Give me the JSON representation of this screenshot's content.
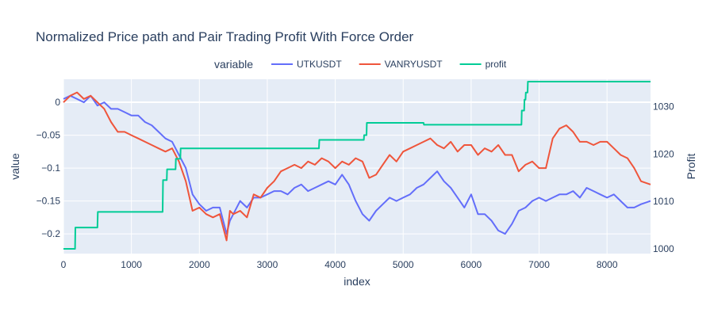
{
  "chart_data": {
    "type": "line",
    "title": "Normalized Price path and Pair Trading Profit With Force Order",
    "xlabel": "index",
    "ylabel": "value",
    "y2label": "Profit",
    "legend_title": "variable",
    "legend_position": "top",
    "xlim": [
      0,
      8640
    ],
    "ylim": [
      -0.23,
      0.035
    ],
    "y2lim": [
      999,
      1035.8
    ],
    "x_ticks": [
      0,
      1000,
      2000,
      3000,
      4000,
      5000,
      6000,
      7000,
      8000
    ],
    "y_ticks": [
      0,
      -0.05,
      -0.1,
      -0.15,
      -0.2
    ],
    "y_tick_labels": [
      "0",
      "−0.05",
      "−0.1",
      "−0.15",
      "−0.2"
    ],
    "y2_ticks": [
      1000,
      1010,
      1020,
      1030
    ],
    "grid": true,
    "background": "#e5ecf6",
    "series": [
      {
        "name": "UTKUSDT",
        "axis": "y",
        "color": "#636efa",
        "x": [
          0,
          100,
          200,
          300,
          400,
          500,
          600,
          700,
          800,
          900,
          1000,
          1100,
          1200,
          1300,
          1400,
          1500,
          1600,
          1700,
          1800,
          1900,
          2000,
          2100,
          2200,
          2300,
          2400,
          2450,
          2500,
          2600,
          2700,
          2800,
          2900,
          3000,
          3100,
          3200,
          3300,
          3400,
          3500,
          3600,
          3700,
          3800,
          3900,
          4000,
          4100,
          4200,
          4300,
          4400,
          4500,
          4600,
          4700,
          4800,
          4900,
          5000,
          5100,
          5200,
          5300,
          5400,
          5500,
          5600,
          5700,
          5800,
          5900,
          6000,
          6100,
          6200,
          6300,
          6400,
          6500,
          6600,
          6700,
          6800,
          6900,
          7000,
          7100,
          7200,
          7300,
          7400,
          7500,
          7600,
          7700,
          7800,
          7900,
          8000,
          8100,
          8200,
          8300,
          8400,
          8500,
          8640
        ],
        "y": [
          0.005,
          0.01,
          0.005,
          0.0,
          0.01,
          -0.005,
          0.0,
          -0.01,
          -0.01,
          -0.015,
          -0.02,
          -0.02,
          -0.03,
          -0.035,
          -0.045,
          -0.055,
          -0.06,
          -0.08,
          -0.1,
          -0.14,
          -0.155,
          -0.165,
          -0.16,
          -0.16,
          -0.2,
          -0.18,
          -0.17,
          -0.15,
          -0.16,
          -0.145,
          -0.145,
          -0.14,
          -0.135,
          -0.135,
          -0.14,
          -0.13,
          -0.125,
          -0.135,
          -0.13,
          -0.125,
          -0.12,
          -0.125,
          -0.11,
          -0.125,
          -0.15,
          -0.17,
          -0.18,
          -0.165,
          -0.155,
          -0.145,
          -0.15,
          -0.145,
          -0.14,
          -0.13,
          -0.125,
          -0.115,
          -0.105,
          -0.12,
          -0.13,
          -0.145,
          -0.16,
          -0.14,
          -0.17,
          -0.17,
          -0.18,
          -0.195,
          -0.2,
          -0.185,
          -0.165,
          -0.16,
          -0.15,
          -0.145,
          -0.15,
          -0.145,
          -0.14,
          -0.14,
          -0.135,
          -0.145,
          -0.13,
          -0.135,
          -0.14,
          -0.145,
          -0.14,
          -0.15,
          -0.16,
          -0.16,
          -0.155,
          -0.15
        ]
      },
      {
        "name": "VANRYUSDT",
        "axis": "y",
        "color": "#ef553b",
        "x": [
          0,
          100,
          200,
          300,
          400,
          500,
          600,
          700,
          800,
          900,
          1000,
          1100,
          1200,
          1300,
          1400,
          1500,
          1600,
          1700,
          1800,
          1900,
          2000,
          2100,
          2200,
          2300,
          2400,
          2450,
          2500,
          2600,
          2700,
          2800,
          2900,
          3000,
          3100,
          3200,
          3300,
          3400,
          3500,
          3600,
          3700,
          3800,
          3900,
          4000,
          4100,
          4200,
          4300,
          4400,
          4500,
          4600,
          4700,
          4800,
          4900,
          5000,
          5100,
          5200,
          5300,
          5400,
          5500,
          5600,
          5700,
          5800,
          5900,
          6000,
          6100,
          6200,
          6300,
          6400,
          6500,
          6600,
          6700,
          6800,
          6900,
          7000,
          7100,
          7200,
          7300,
          7400,
          7500,
          7600,
          7700,
          7800,
          7900,
          8000,
          8100,
          8200,
          8300,
          8400,
          8500,
          8640
        ],
        "y": [
          0.0,
          0.01,
          0.015,
          0.005,
          0.01,
          0.0,
          -0.01,
          -0.03,
          -0.045,
          -0.045,
          -0.05,
          -0.055,
          -0.06,
          -0.065,
          -0.07,
          -0.075,
          -0.07,
          -0.09,
          -0.12,
          -0.165,
          -0.16,
          -0.17,
          -0.175,
          -0.17,
          -0.21,
          -0.165,
          -0.17,
          -0.165,
          -0.175,
          -0.14,
          -0.145,
          -0.13,
          -0.12,
          -0.105,
          -0.1,
          -0.095,
          -0.1,
          -0.09,
          -0.095,
          -0.085,
          -0.09,
          -0.1,
          -0.09,
          -0.095,
          -0.085,
          -0.09,
          -0.115,
          -0.11,
          -0.095,
          -0.08,
          -0.09,
          -0.075,
          -0.07,
          -0.065,
          -0.06,
          -0.055,
          -0.065,
          -0.07,
          -0.06,
          -0.075,
          -0.065,
          -0.065,
          -0.08,
          -0.07,
          -0.075,
          -0.065,
          -0.08,
          -0.08,
          -0.105,
          -0.095,
          -0.09,
          -0.1,
          -0.1,
          -0.055,
          -0.04,
          -0.035,
          -0.045,
          -0.06,
          -0.06,
          -0.065,
          -0.06,
          -0.06,
          -0.07,
          -0.08,
          -0.085,
          -0.1,
          -0.12,
          -0.125
        ]
      },
      {
        "name": "profit",
        "axis": "y2",
        "color": "#00cc96",
        "shape": "step",
        "x": [
          0,
          170,
          175,
          500,
          505,
          1460,
          1465,
          1520,
          1525,
          1650,
          1655,
          1720,
          1725,
          3760,
          3765,
          4420,
          4425,
          4460,
          4465,
          5300,
          5305,
          6740,
          6745,
          6780,
          6785,
          6800,
          6805,
          6830,
          6835,
          8640
        ],
        "y": [
          1000,
          1000,
          1004.5,
          1004.5,
          1007.8,
          1007.8,
          1014.5,
          1014.5,
          1016.8,
          1016.8,
          1019,
          1019,
          1021.2,
          1021.2,
          1023,
          1023,
          1024,
          1024,
          1026.6,
          1026.6,
          1026.2,
          1026.2,
          1029.2,
          1029.2,
          1031.5,
          1031.5,
          1033,
          1033,
          1035.3,
          1035.3
        ]
      }
    ]
  }
}
